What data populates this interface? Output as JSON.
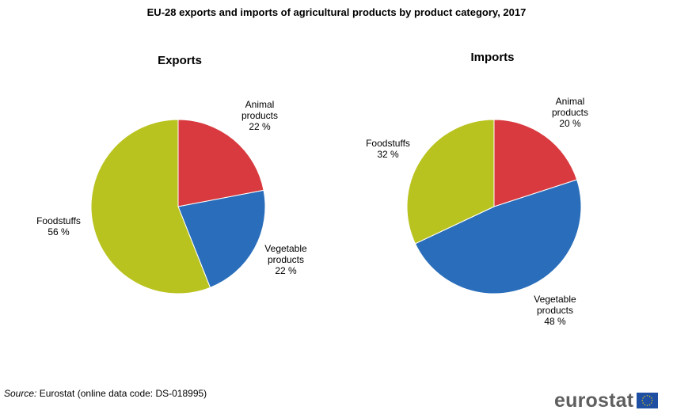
{
  "title": "EU-28 exports and imports of  agricultural products by product category, 2017",
  "source": {
    "prefix": "Source:",
    "text": "Eurostat (online data code: DS-018995)"
  },
  "logo": {
    "text": "eurostat",
    "flag_icon": "eu-flag-icon"
  },
  "colors": {
    "animal": "#d93a3f",
    "vegetable": "#2a6ebb",
    "foodstuffs": "#b9c320"
  },
  "chart_data": [
    {
      "type": "pie",
      "title": "Exports",
      "slices": [
        {
          "key": "animal",
          "label_lines": [
            "Animal",
            "products"
          ],
          "value": 22,
          "value_label": "22 %"
        },
        {
          "key": "vegetable",
          "label_lines": [
            "Vegetable",
            "products"
          ],
          "value": 22,
          "value_label": "22 %"
        },
        {
          "key": "foodstuffs",
          "label_lines": [
            "Foodstuffs"
          ],
          "value": 56,
          "value_label": "56 %"
        }
      ]
    },
    {
      "type": "pie",
      "title": "Imports",
      "slices": [
        {
          "key": "animal",
          "label_lines": [
            "Animal",
            "products"
          ],
          "value": 20,
          "value_label": "20 %"
        },
        {
          "key": "vegetable",
          "label_lines": [
            "Vegetable",
            "products"
          ],
          "value": 48,
          "value_label": "48 %"
        },
        {
          "key": "foodstuffs",
          "label_lines": [
            "Foodstuffs"
          ],
          "value": 32,
          "value_label": "32 %"
        }
      ]
    }
  ]
}
